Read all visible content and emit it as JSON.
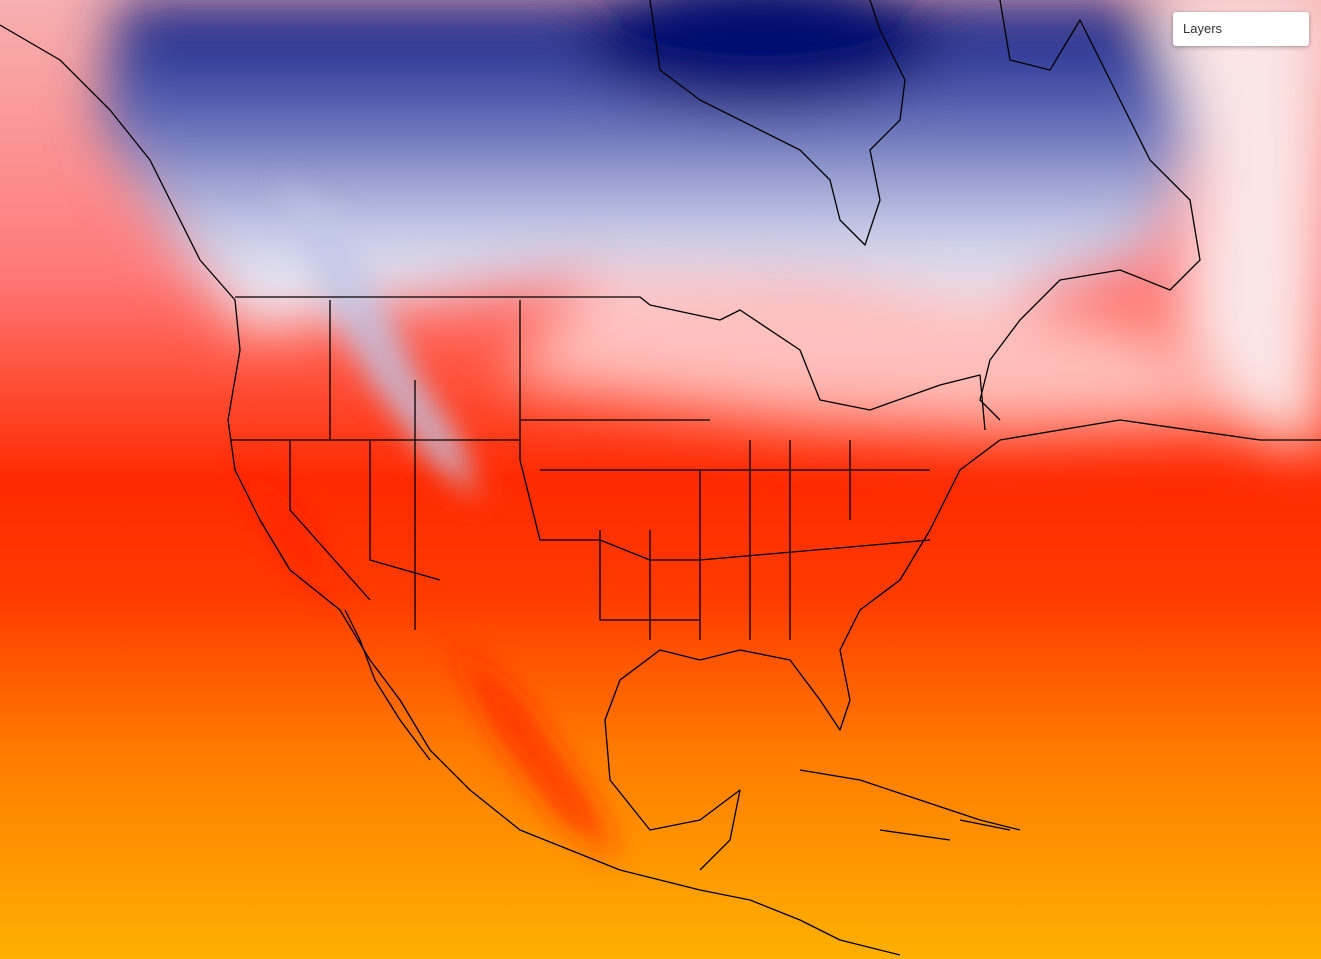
{
  "layers_control": {
    "label": "Layers"
  }
}
